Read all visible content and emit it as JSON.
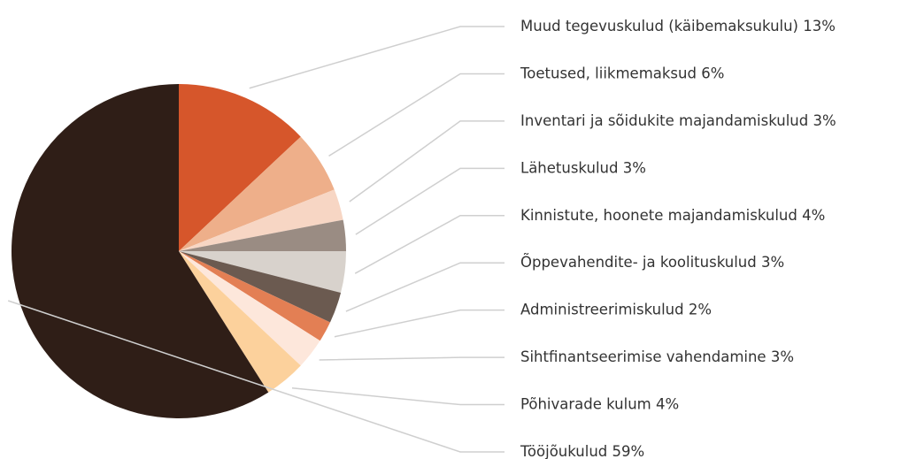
{
  "chart_data": {
    "type": "pie",
    "categories": [
      "Muud tegevuskulud (käibemaksukulu)",
      "Toetused, liikmemaksud",
      "Inventari ja sõidukite majandamiskulud",
      "Lähetuskulud",
      "Kinnistute, hoonete majandamiskulud",
      "Õppevahendite- ja koolituskulud",
      "Administreerimiskulud",
      "Sihtfinantseerimise vahendamine",
      "Põhivarade kulum",
      "Tööjõukulud"
    ],
    "values": [
      13,
      6,
      3,
      3,
      4,
      3,
      2,
      3,
      4,
      59
    ],
    "value_labels": [
      "13%",
      "6%",
      "3%",
      "3%",
      "4%",
      "3%",
      "2%",
      "3%",
      "4%",
      "59%"
    ],
    "colors": [
      "#d6562b",
      "#eeaf8a",
      "#f7d6c4",
      "#9a8c83",
      "#d8d2cc",
      "#6b5a50",
      "#e37f54",
      "#fde7db",
      "#fcd19c",
      "#2f1e17"
    ]
  }
}
